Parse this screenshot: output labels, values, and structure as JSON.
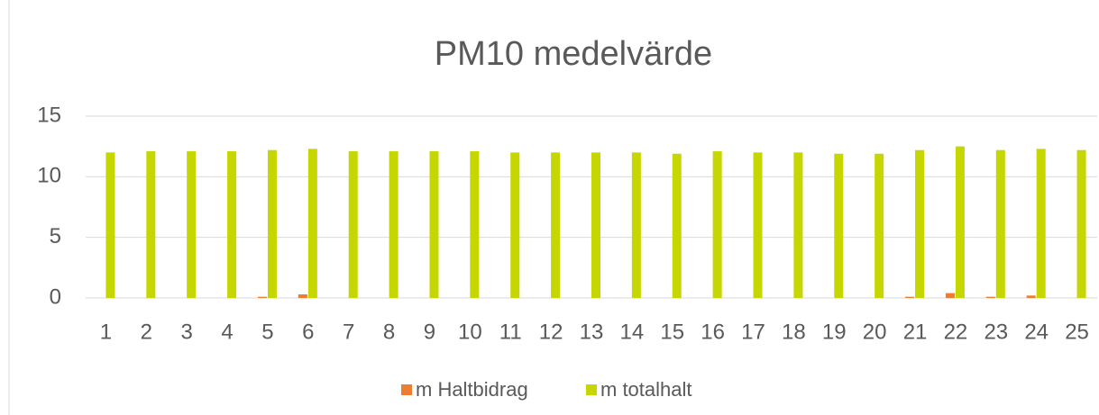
{
  "chart_data": {
    "type": "bar",
    "title": "PM10 medelvärde",
    "categories": [
      "1",
      "2",
      "3",
      "4",
      "5",
      "6",
      "7",
      "8",
      "9",
      "10",
      "11",
      "12",
      "13",
      "14",
      "15",
      "16",
      "17",
      "18",
      "19",
      "20",
      "21",
      "22",
      "23",
      "24",
      "25"
    ],
    "series": [
      {
        "name": "m Haltbidrag",
        "color": "#ed7d31",
        "values": [
          0,
          0,
          0,
          0,
          0.1,
          0.3,
          0,
          0,
          0,
          0,
          0,
          0,
          0,
          0,
          0,
          0,
          0,
          0,
          0,
          0,
          0.1,
          0.4,
          0.1,
          0.2,
          0
        ]
      },
      {
        "name": "m totalhalt",
        "color": "#c5d600",
        "values": [
          12.0,
          12.1,
          12.1,
          12.1,
          12.2,
          12.3,
          12.1,
          12.1,
          12.1,
          12.1,
          12.0,
          12.0,
          12.0,
          12.0,
          11.9,
          12.1,
          12.0,
          12.0,
          11.9,
          11.9,
          12.2,
          12.5,
          12.2,
          12.3,
          12.2
        ]
      }
    ],
    "ylim": [
      0,
      15
    ],
    "yticks": [
      0,
      5,
      10,
      15
    ],
    "grid": true,
    "legend": "bottom"
  }
}
